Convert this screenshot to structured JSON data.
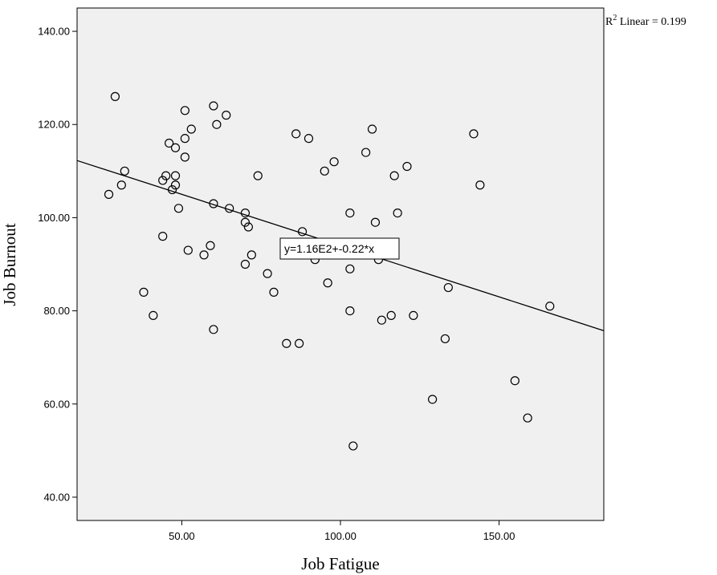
{
  "chart_data": {
    "type": "scatter",
    "xlabel": "Job Fatigue",
    "ylabel": "Job Burnout",
    "xlim": [
      17,
      183
    ],
    "ylim": [
      35,
      145
    ],
    "x_ticks": [
      50,
      100,
      150
    ],
    "x_tick_labels": [
      "50.00",
      "100.00",
      "150.00"
    ],
    "y_ticks": [
      40,
      60,
      80,
      100,
      120,
      140
    ],
    "y_tick_labels": [
      "40.00",
      "60.00",
      "80.00",
      "100.00",
      "120.00",
      "140.00"
    ],
    "grid": false,
    "background": "#f0f0f0",
    "point_color": "#000000",
    "fit_line": {
      "intercept": 116,
      "slope": -0.22,
      "equation": "y=1.16E2+-0.22*x"
    },
    "r2_text": {
      "prefix": "R",
      "sup": "2",
      "suffix": " Linear = 0.199"
    },
    "points": [
      [
        29,
        126
      ],
      [
        27,
        105
      ],
      [
        31,
        107
      ],
      [
        32,
        110
      ],
      [
        38,
        84
      ],
      [
        41,
        79
      ],
      [
        44,
        96
      ],
      [
        44,
        108
      ],
      [
        45,
        109
      ],
      [
        46,
        116
      ],
      [
        47,
        106
      ],
      [
        48,
        115
      ],
      [
        48,
        109
      ],
      [
        48,
        107
      ],
      [
        49,
        102
      ],
      [
        51,
        123
      ],
      [
        51,
        117
      ],
      [
        51,
        113
      ],
      [
        52,
        93
      ],
      [
        53,
        119
      ],
      [
        57,
        92
      ],
      [
        59,
        94
      ],
      [
        60,
        124
      ],
      [
        60,
        103
      ],
      [
        60,
        76
      ],
      [
        61,
        120
      ],
      [
        64,
        122
      ],
      [
        65,
        102
      ],
      [
        70,
        101
      ],
      [
        70,
        99
      ],
      [
        70,
        90
      ],
      [
        71,
        98
      ],
      [
        72,
        92
      ],
      [
        74,
        109
      ],
      [
        77,
        88
      ],
      [
        79,
        84
      ],
      [
        83,
        73
      ],
      [
        86,
        118
      ],
      [
        87,
        73
      ],
      [
        88,
        97
      ],
      [
        90,
        117
      ],
      [
        92,
        91
      ],
      [
        95,
        110
      ],
      [
        96,
        86
      ],
      [
        98,
        112
      ],
      [
        103,
        101
      ],
      [
        103,
        89
      ],
      [
        103,
        80
      ],
      [
        104,
        51
      ],
      [
        108,
        114
      ],
      [
        110,
        119
      ],
      [
        111,
        99
      ],
      [
        112,
        91
      ],
      [
        113,
        78
      ],
      [
        116,
        79
      ],
      [
        117,
        109
      ],
      [
        118,
        101
      ],
      [
        121,
        111
      ],
      [
        123,
        79
      ],
      [
        129,
        61
      ],
      [
        133,
        74
      ],
      [
        134,
        85
      ],
      [
        142,
        118
      ],
      [
        144,
        107
      ],
      [
        155,
        65
      ],
      [
        159,
        57
      ],
      [
        166,
        81
      ]
    ]
  }
}
